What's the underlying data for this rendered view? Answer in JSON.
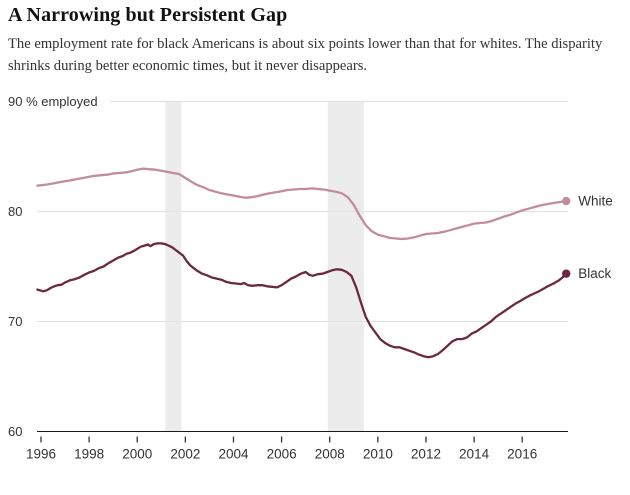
{
  "header": {
    "title": "A Narrowing but Persistent Gap",
    "subtitle": "The employment rate for black Americans is about six points lower than that for whites. The disparity shrinks during better economic times, but it never disappears."
  },
  "colors": {
    "white_series": "#c28ba0",
    "black_series": "#6b2843",
    "grid": "#e2e2e2",
    "axis": "#1a1a1a",
    "tick": "#333333",
    "recession_band": "#ececec",
    "label_text": "#333333"
  },
  "chart_data": {
    "type": "line",
    "title": "A Narrowing but Persistent Gap",
    "xlabel": "",
    "ylabel": "% employed",
    "xlim": [
      1995.83,
      2018.05
    ],
    "ylim": [
      60,
      90
    ],
    "grid": "horizontal",
    "legend_position": "right-of-line-end",
    "x_ticks": [
      1996,
      1998,
      2000,
      2002,
      2004,
      2006,
      2008,
      2010,
      2012,
      2014,
      2016
    ],
    "y_ticks": [
      {
        "v": 60,
        "label": "60"
      },
      {
        "v": 70,
        "label": "70"
      },
      {
        "v": 80,
        "label": "80"
      },
      {
        "v": 90,
        "label": "90 % employed"
      }
    ],
    "recession_bands": [
      [
        2001.17,
        2001.83
      ],
      [
        2007.92,
        2009.42
      ]
    ],
    "series": [
      {
        "name": "White",
        "color": "#c28ba0",
        "end_value": 80.95,
        "points": [
          [
            1995.85,
            82.35
          ],
          [
            1996.25,
            82.45
          ],
          [
            1996.5,
            82.55
          ],
          [
            1996.75,
            82.65
          ],
          [
            1997.0,
            82.75
          ],
          [
            1997.25,
            82.85
          ],
          [
            1997.5,
            82.95
          ],
          [
            1997.75,
            83.05
          ],
          [
            1998.0,
            83.15
          ],
          [
            1998.25,
            83.25
          ],
          [
            1998.5,
            83.3
          ],
          [
            1998.75,
            83.35
          ],
          [
            1999.0,
            83.45
          ],
          [
            1999.25,
            83.5
          ],
          [
            1999.5,
            83.55
          ],
          [
            1999.75,
            83.65
          ],
          [
            2000.0,
            83.8
          ],
          [
            2000.25,
            83.9
          ],
          [
            2000.5,
            83.85
          ],
          [
            2000.75,
            83.8
          ],
          [
            2001.0,
            83.7
          ],
          [
            2001.25,
            83.6
          ],
          [
            2001.5,
            83.5
          ],
          [
            2001.75,
            83.4
          ],
          [
            2002.0,
            83.05
          ],
          [
            2002.25,
            82.7
          ],
          [
            2002.5,
            82.4
          ],
          [
            2002.75,
            82.2
          ],
          [
            2003.0,
            81.95
          ],
          [
            2003.25,
            81.8
          ],
          [
            2003.5,
            81.65
          ],
          [
            2003.75,
            81.55
          ],
          [
            2004.0,
            81.45
          ],
          [
            2004.25,
            81.35
          ],
          [
            2004.5,
            81.25
          ],
          [
            2004.75,
            81.3
          ],
          [
            2005.0,
            81.4
          ],
          [
            2005.25,
            81.55
          ],
          [
            2005.5,
            81.65
          ],
          [
            2005.75,
            81.75
          ],
          [
            2006.0,
            81.85
          ],
          [
            2006.25,
            81.95
          ],
          [
            2006.5,
            82.0
          ],
          [
            2006.75,
            82.05
          ],
          [
            2007.0,
            82.05
          ],
          [
            2007.25,
            82.1
          ],
          [
            2007.5,
            82.05
          ],
          [
            2007.75,
            82.0
          ],
          [
            2008.0,
            81.9
          ],
          [
            2008.25,
            81.8
          ],
          [
            2008.5,
            81.65
          ],
          [
            2008.75,
            81.3
          ],
          [
            2009.0,
            80.6
          ],
          [
            2009.25,
            79.6
          ],
          [
            2009.5,
            78.75
          ],
          [
            2009.75,
            78.2
          ],
          [
            2010.0,
            77.9
          ],
          [
            2010.25,
            77.75
          ],
          [
            2010.5,
            77.6
          ],
          [
            2010.75,
            77.55
          ],
          [
            2011.0,
            77.5
          ],
          [
            2011.25,
            77.55
          ],
          [
            2011.5,
            77.65
          ],
          [
            2011.75,
            77.8
          ],
          [
            2012.0,
            77.95
          ],
          [
            2012.25,
            78.0
          ],
          [
            2012.5,
            78.05
          ],
          [
            2012.75,
            78.15
          ],
          [
            2013.0,
            78.3
          ],
          [
            2013.25,
            78.45
          ],
          [
            2013.5,
            78.6
          ],
          [
            2013.75,
            78.75
          ],
          [
            2014.0,
            78.9
          ],
          [
            2014.25,
            78.95
          ],
          [
            2014.5,
            79.0
          ],
          [
            2014.75,
            79.15
          ],
          [
            2015.0,
            79.35
          ],
          [
            2015.25,
            79.55
          ],
          [
            2015.5,
            79.7
          ],
          [
            2015.75,
            79.9
          ],
          [
            2016.0,
            80.1
          ],
          [
            2016.25,
            80.25
          ],
          [
            2016.5,
            80.4
          ],
          [
            2016.75,
            80.55
          ],
          [
            2017.0,
            80.65
          ],
          [
            2017.25,
            80.75
          ],
          [
            2017.5,
            80.85
          ],
          [
            2017.83,
            80.95
          ]
        ]
      },
      {
        "name": "Black",
        "color": "#6b2843",
        "end_value": 74.35,
        "points": [
          [
            1995.85,
            72.9
          ],
          [
            1996.1,
            72.75
          ],
          [
            1996.25,
            72.85
          ],
          [
            1996.4,
            73.05
          ],
          [
            1996.55,
            73.2
          ],
          [
            1996.7,
            73.3
          ],
          [
            1996.85,
            73.35
          ],
          [
            1997.0,
            73.55
          ],
          [
            1997.2,
            73.75
          ],
          [
            1997.4,
            73.85
          ],
          [
            1997.6,
            74.0
          ],
          [
            1997.8,
            74.25
          ],
          [
            1998.0,
            74.45
          ],
          [
            1998.2,
            74.6
          ],
          [
            1998.4,
            74.85
          ],
          [
            1998.6,
            75.0
          ],
          [
            1998.8,
            75.3
          ],
          [
            1999.0,
            75.55
          ],
          [
            1999.2,
            75.8
          ],
          [
            1999.4,
            75.95
          ],
          [
            1999.55,
            76.15
          ],
          [
            1999.7,
            76.25
          ],
          [
            1999.85,
            76.4
          ],
          [
            2000.0,
            76.6
          ],
          [
            2000.15,
            76.8
          ],
          [
            2000.3,
            76.9
          ],
          [
            2000.45,
            77.0
          ],
          [
            2000.55,
            76.85
          ],
          [
            2000.7,
            77.05
          ],
          [
            2000.85,
            77.1
          ],
          [
            2001.0,
            77.1
          ],
          [
            2001.15,
            77.05
          ],
          [
            2001.3,
            76.9
          ],
          [
            2001.45,
            76.75
          ],
          [
            2001.6,
            76.5
          ],
          [
            2001.75,
            76.25
          ],
          [
            2001.9,
            76.0
          ],
          [
            2002.05,
            75.5
          ],
          [
            2002.2,
            75.1
          ],
          [
            2002.35,
            74.85
          ],
          [
            2002.5,
            74.6
          ],
          [
            2002.7,
            74.35
          ],
          [
            2002.9,
            74.2
          ],
          [
            2003.1,
            74.0
          ],
          [
            2003.3,
            73.9
          ],
          [
            2003.5,
            73.8
          ],
          [
            2003.7,
            73.6
          ],
          [
            2003.9,
            73.5
          ],
          [
            2004.1,
            73.45
          ],
          [
            2004.3,
            73.4
          ],
          [
            2004.45,
            73.5
          ],
          [
            2004.6,
            73.3
          ],
          [
            2004.8,
            73.25
          ],
          [
            2005.0,
            73.3
          ],
          [
            2005.2,
            73.3
          ],
          [
            2005.4,
            73.2
          ],
          [
            2005.6,
            73.15
          ],
          [
            2005.8,
            73.1
          ],
          [
            2006.0,
            73.3
          ],
          [
            2006.2,
            73.6
          ],
          [
            2006.4,
            73.9
          ],
          [
            2006.6,
            74.1
          ],
          [
            2006.8,
            74.35
          ],
          [
            2007.0,
            74.5
          ],
          [
            2007.15,
            74.25
          ],
          [
            2007.3,
            74.15
          ],
          [
            2007.5,
            74.3
          ],
          [
            2007.7,
            74.35
          ],
          [
            2007.9,
            74.5
          ],
          [
            2008.1,
            74.65
          ],
          [
            2008.3,
            74.75
          ],
          [
            2008.5,
            74.7
          ],
          [
            2008.7,
            74.5
          ],
          [
            2008.9,
            74.15
          ],
          [
            2009.1,
            73.1
          ],
          [
            2009.3,
            71.7
          ],
          [
            2009.5,
            70.4
          ],
          [
            2009.7,
            69.6
          ],
          [
            2009.9,
            69.0
          ],
          [
            2010.1,
            68.4
          ],
          [
            2010.3,
            68.05
          ],
          [
            2010.5,
            67.8
          ],
          [
            2010.7,
            67.65
          ],
          [
            2010.9,
            67.65
          ],
          [
            2011.1,
            67.5
          ],
          [
            2011.3,
            67.35
          ],
          [
            2011.5,
            67.2
          ],
          [
            2011.7,
            67.0
          ],
          [
            2011.9,
            66.85
          ],
          [
            2012.1,
            66.75
          ],
          [
            2012.3,
            66.85
          ],
          [
            2012.5,
            67.05
          ],
          [
            2012.7,
            67.4
          ],
          [
            2012.9,
            67.8
          ],
          [
            2013.1,
            68.2
          ],
          [
            2013.3,
            68.4
          ],
          [
            2013.5,
            68.4
          ],
          [
            2013.7,
            68.55
          ],
          [
            2013.9,
            68.9
          ],
          [
            2014.1,
            69.1
          ],
          [
            2014.3,
            69.4
          ],
          [
            2014.5,
            69.7
          ],
          [
            2014.7,
            70.0
          ],
          [
            2014.9,
            70.4
          ],
          [
            2015.1,
            70.7
          ],
          [
            2015.3,
            71.0
          ],
          [
            2015.5,
            71.3
          ],
          [
            2015.7,
            71.6
          ],
          [
            2015.9,
            71.85
          ],
          [
            2016.1,
            72.1
          ],
          [
            2016.3,
            72.35
          ],
          [
            2016.5,
            72.55
          ],
          [
            2016.7,
            72.75
          ],
          [
            2016.9,
            73.0
          ],
          [
            2017.1,
            73.25
          ],
          [
            2017.3,
            73.45
          ],
          [
            2017.5,
            73.7
          ],
          [
            2017.65,
            73.95
          ],
          [
            2017.83,
            74.35
          ]
        ]
      }
    ]
  }
}
